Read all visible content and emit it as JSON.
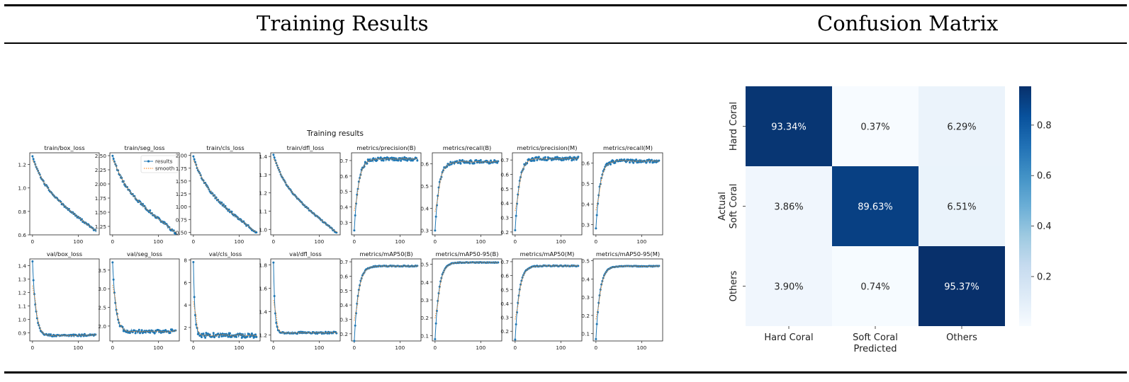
{
  "header": {
    "left_title": "Training Results",
    "right_title": "Confusion Matrix"
  },
  "training": {
    "suptitle": "Training results",
    "legend": [
      "results",
      "smooth"
    ],
    "palette": {
      "results": "#1f77b4",
      "smooth": "#ff7f0e"
    }
  },
  "chart_data": [
    {
      "type": "line",
      "title": "Training results",
      "x_ticks": [
        0,
        100
      ],
      "epochs": 140,
      "series_names": [
        "results",
        "smooth"
      ],
      "panels": [
        {
          "title": "train/box_loss",
          "ylim": [
            0.6,
            1.3
          ],
          "yticks": [
            0.6,
            0.8,
            1.0,
            1.2
          ],
          "start": 1.27,
          "end": 0.63,
          "shape": "linear",
          "noise": 0.008
        },
        {
          "title": "train/seg_loss",
          "ylim": [
            1.1,
            2.55
          ],
          "yticks": [
            1.25,
            1.5,
            1.75,
            2.0,
            2.25,
            2.5
          ],
          "start": 2.5,
          "end": 1.13,
          "shape": "linear",
          "noise": 0.012
        },
        {
          "title": "train/cls_loss",
          "ylim": [
            0.45,
            2.05
          ],
          "yticks": [
            0.5,
            0.75,
            1.0,
            1.25,
            1.5,
            1.75,
            2.0
          ],
          "start": 1.98,
          "end": 0.48,
          "shape": "linear",
          "noise": 0.01
        },
        {
          "title": "train/dfl_loss",
          "ylim": [
            0.97,
            1.42
          ],
          "yticks": [
            1.0,
            1.1,
            1.2,
            1.3,
            1.4
          ],
          "start": 1.41,
          "end": 0.98,
          "shape": "linear",
          "noise": 0.005
        },
        {
          "title": "metrics/precision(B)",
          "ylim": [
            0.22,
            0.75
          ],
          "yticks": [
            0.3,
            0.4,
            0.5,
            0.6,
            0.7
          ],
          "start": 0.25,
          "end": 0.71,
          "shape": "rise",
          "noise": 0.015
        },
        {
          "title": "metrics/recall(B)",
          "ylim": [
            0.28,
            0.65
          ],
          "yticks": [
            0.3,
            0.4,
            0.5,
            0.6
          ],
          "start": 0.3,
          "end": 0.61,
          "shape": "rise",
          "noise": 0.015
        },
        {
          "title": "metrics/precision(M)",
          "ylim": [
            0.18,
            0.75
          ],
          "yticks": [
            0.2,
            0.3,
            0.4,
            0.5,
            0.6,
            0.7
          ],
          "start": 0.21,
          "end": 0.71,
          "shape": "rise",
          "noise": 0.015
        },
        {
          "title": "metrics/recall(M)",
          "ylim": [
            0.25,
            0.65
          ],
          "yticks": [
            0.3,
            0.4,
            0.5,
            0.6
          ],
          "start": 0.28,
          "end": 0.61,
          "shape": "rise",
          "noise": 0.015
        },
        {
          "title": "val/box_loss",
          "ylim": [
            0.84,
            1.45
          ],
          "yticks": [
            0.9,
            1.0,
            1.1,
            1.2,
            1.3,
            1.4
          ],
          "start": 1.43,
          "end": 0.88,
          "shape": "decay",
          "noise": 0.008
        },
        {
          "title": "val/seg_loss",
          "ylim": [
            1.6,
            3.8
          ],
          "yticks": [
            2.0,
            2.5,
            3.0,
            3.5
          ],
          "start": 3.7,
          "end": 1.85,
          "shape": "decay",
          "noise": 0.015
        },
        {
          "title": "val/cls_loss",
          "ylim": [
            0.8,
            8.1
          ],
          "yticks": [
            2,
            4,
            6,
            8
          ],
          "start": 7.8,
          "end": 1.3,
          "shape": "spike",
          "noise": 0.02
        },
        {
          "title": "val/dfl_loss",
          "ylim": [
            1.15,
            1.85
          ],
          "yticks": [
            1.2,
            1.4,
            1.6,
            1.8
          ],
          "start": 1.82,
          "end": 1.22,
          "shape": "spike",
          "noise": 0.008
        },
        {
          "title": "metrics/mAP50(B)",
          "ylim": [
            0.15,
            0.72
          ],
          "yticks": [
            0.2,
            0.3,
            0.4,
            0.5,
            0.6,
            0.7
          ],
          "start": 0.15,
          "end": 0.67,
          "shape": "rise",
          "noise": 0.004
        },
        {
          "title": "metrics/mAP50-95(B)",
          "ylim": [
            0.07,
            0.53
          ],
          "yticks": [
            0.1,
            0.2,
            0.3,
            0.4,
            0.5
          ],
          "start": 0.08,
          "end": 0.51,
          "shape": "rise",
          "noise": 0.003
        },
        {
          "title": "metrics/mAP50(M)",
          "ylim": [
            0.13,
            0.72
          ],
          "yticks": [
            0.2,
            0.3,
            0.4,
            0.5,
            0.6,
            0.7
          ],
          "start": 0.14,
          "end": 0.67,
          "shape": "rise",
          "noise": 0.004
        },
        {
          "title": "metrics/mAP50-95(M)",
          "ylim": [
            0.06,
            0.51
          ],
          "yticks": [
            0.1,
            0.2,
            0.3,
            0.4,
            0.5
          ],
          "start": 0.07,
          "end": 0.47,
          "shape": "rise",
          "noise": 0.003
        }
      ]
    },
    {
      "type": "heatmap",
      "xlabel": "Predicted",
      "ylabel": "Actual",
      "x_categories": [
        "Hard Coral",
        "Soft Coral",
        "Others"
      ],
      "y_categories": [
        "Hard Coral",
        "Soft Coral",
        "Others"
      ],
      "values": [
        [
          0.9334,
          0.0037,
          0.0629
        ],
        [
          0.0386,
          0.8963,
          0.0651
        ],
        [
          0.039,
          0.0074,
          0.9537
        ]
      ],
      "labels": [
        [
          "93.34%",
          "0.37%",
          "6.29%"
        ],
        [
          "3.86%",
          "89.63%",
          "6.51%"
        ],
        [
          "3.90%",
          "0.74%",
          "95.37%"
        ]
      ],
      "colorbar_ticks": [
        0.2,
        0.4,
        0.6,
        0.8
      ],
      "colorbar_range": [
        0.0037,
        0.9537
      ],
      "colormap": "Blues"
    }
  ]
}
